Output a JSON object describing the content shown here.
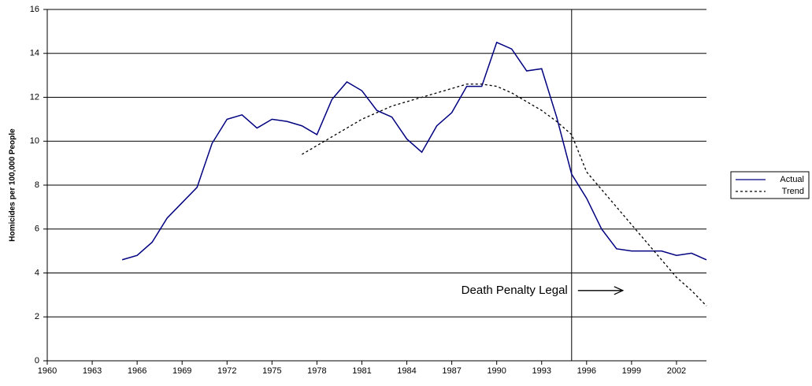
{
  "chart_data": {
    "type": "line",
    "y_label": "Homicides per 100,000 People",
    "x": [
      1965,
      1966,
      1967,
      1968,
      1969,
      1970,
      1971,
      1972,
      1973,
      1974,
      1975,
      1976,
      1977,
      1978,
      1979,
      1980,
      1981,
      1982,
      1983,
      1984,
      1985,
      1986,
      1987,
      1988,
      1989,
      1990,
      1991,
      1992,
      1993,
      1994,
      1995,
      1996,
      1997,
      1998,
      1999,
      2000,
      2001,
      2002,
      2003,
      2004
    ],
    "series": [
      {
        "name": "Actual",
        "color": "#000080",
        "dash": false,
        "values": [
          4.6,
          4.8,
          5.4,
          6.5,
          7.2,
          7.9,
          9.9,
          11.0,
          11.2,
          10.6,
          11.0,
          10.9,
          10.7,
          10.3,
          11.9,
          12.7,
          12.3,
          11.4,
          11.1,
          10.1,
          9.5,
          10.7,
          11.3,
          12.5,
          12.5,
          14.5,
          14.2,
          13.2,
          13.3,
          11.1,
          8.5,
          7.4,
          6.0,
          5.1,
          5.0,
          5.0,
          5.0,
          4.8,
          4.9,
          4.6
        ]
      },
      {
        "name": "Trend",
        "color": "#000000",
        "dash": true,
        "values": [
          null,
          null,
          null,
          null,
          null,
          null,
          null,
          null,
          null,
          null,
          null,
          null,
          9.4,
          9.8,
          10.2,
          10.6,
          11.0,
          11.3,
          11.6,
          11.8,
          12.0,
          12.2,
          12.4,
          12.6,
          12.6,
          12.5,
          12.2,
          11.8,
          11.4,
          10.9,
          10.3,
          8.6,
          7.8,
          7.0,
          6.2,
          5.4,
          4.6,
          3.8,
          3.2,
          2.5
        ]
      }
    ],
    "xlim": [
      1960,
      2004
    ],
    "xticks": [
      1960,
      1963,
      1966,
      1969,
      1972,
      1975,
      1978,
      1981,
      1984,
      1987,
      1990,
      1993,
      1996,
      1999,
      2002
    ],
    "ylim": [
      0,
      16
    ],
    "yticks": [
      0,
      2,
      4,
      6,
      8,
      10,
      12,
      14,
      16
    ],
    "grid": true,
    "vline_x": 1995,
    "annotation": "Death Penalty Legal",
    "legend": "right"
  }
}
